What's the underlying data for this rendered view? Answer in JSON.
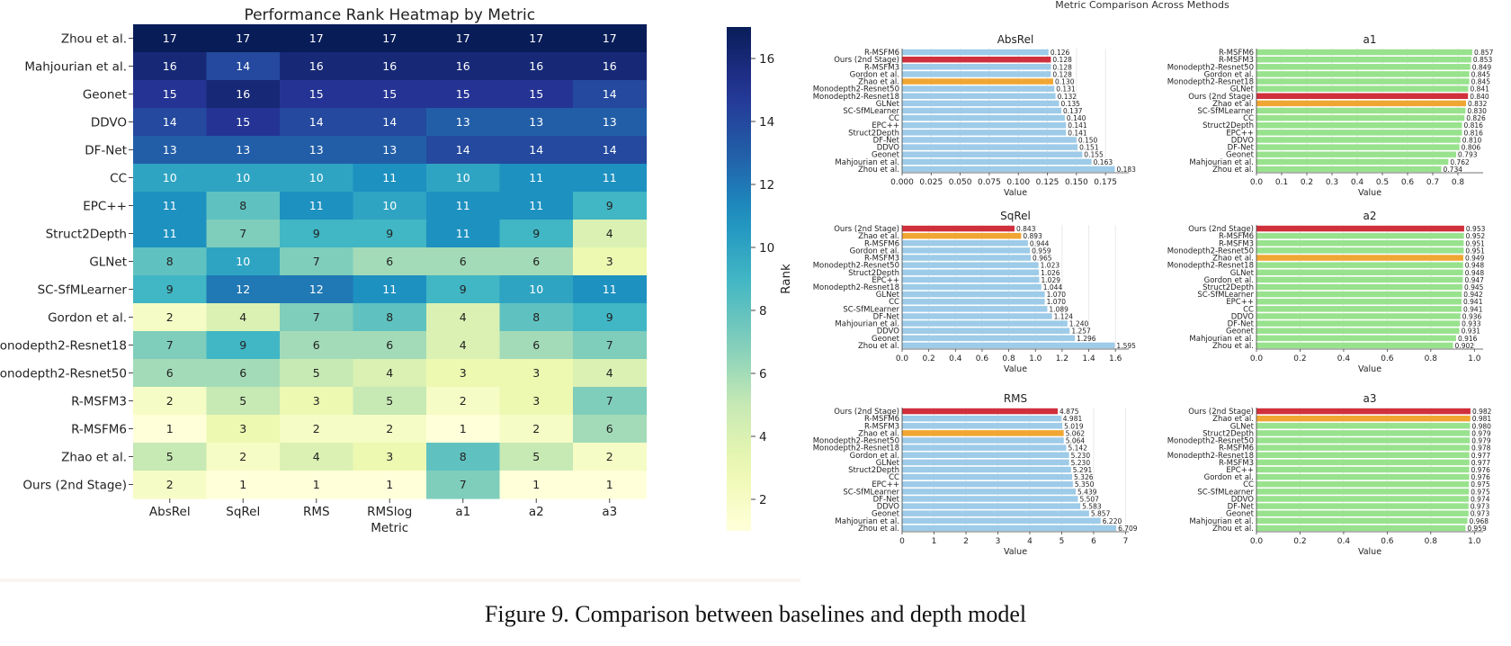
{
  "caption": "Figure 9. Comparison between baselines and depth model",
  "colors": {
    "bar_default": "#9dcbe8",
    "bar_green": "#98e28d",
    "bar_ours": "#d0303c",
    "bar_zhao": "#f0a632",
    "heat_low": "#ffffd9",
    "heat_high": "#081d58"
  },
  "chart_data": [
    {
      "type": "heatmap",
      "title": "Performance Rank Heatmap by Metric",
      "xlabel": "Metric",
      "colorbar_label": "Rank",
      "colorbar_ticks": [
        2,
        4,
        6,
        8,
        10,
        12,
        14,
        16
      ],
      "value_range": [
        1,
        17
      ],
      "colormap": "YlGnBu",
      "columns": [
        "AbsRel",
        "SqRel",
        "RMS",
        "RMSlog",
        "a1",
        "a2",
        "a3"
      ],
      "rows": [
        "Zhou et al.",
        "Mahjourian et al.",
        "Geonet",
        "DDVO",
        "DF-Net",
        "CC",
        "EPC++",
        "Struct2Depth",
        "GLNet",
        "SC-SfMLearner",
        "Gordon et al.",
        "Monodepth2-Resnet18",
        "Monodepth2-Resnet50",
        "R-MSFM3",
        "R-MSFM6",
        "Zhao et al.",
        "Ours (2nd Stage)"
      ],
      "values": [
        [
          17,
          17,
          17,
          17,
          17,
          17,
          17
        ],
        [
          16,
          14,
          16,
          16,
          16,
          16,
          16
        ],
        [
          15,
          16,
          15,
          15,
          15,
          15,
          14
        ],
        [
          14,
          15,
          14,
          14,
          13,
          13,
          13
        ],
        [
          13,
          13,
          13,
          13,
          14,
          14,
          14
        ],
        [
          10,
          10,
          10,
          11,
          10,
          11,
          11
        ],
        [
          11,
          8,
          11,
          10,
          11,
          11,
          9
        ],
        [
          11,
          7,
          9,
          9,
          11,
          9,
          4
        ],
        [
          8,
          10,
          7,
          6,
          6,
          6,
          3
        ],
        [
          9,
          12,
          12,
          11,
          9,
          10,
          11
        ],
        [
          2,
          4,
          7,
          8,
          4,
          8,
          9
        ],
        [
          7,
          9,
          6,
          6,
          4,
          6,
          7
        ],
        [
          6,
          6,
          5,
          4,
          3,
          3,
          4
        ],
        [
          2,
          5,
          3,
          5,
          2,
          3,
          7
        ],
        [
          1,
          3,
          2,
          2,
          1,
          2,
          6
        ],
        [
          5,
          2,
          4,
          3,
          8,
          5,
          2
        ],
        [
          2,
          1,
          1,
          1,
          7,
          1,
          1
        ]
      ]
    },
    {
      "type": "bar",
      "orientation": "horizontal",
      "suptitle": "Metric Comparison Across Methods",
      "title": "AbsRel",
      "xlabel": "Value",
      "xlim": [
        0,
        0.195
      ],
      "xticks": [
        "0.000",
        "0.025",
        "0.050",
        "0.075",
        "0.100",
        "0.125",
        "0.150",
        "0.175"
      ],
      "tick_step": 0.025,
      "palette": "blue",
      "categories": [
        "R-MSFM6",
        "Ours (2nd Stage)",
        "R-MSFM3",
        "Gordon et al.",
        "Zhao et al.",
        "Monodepth2-Resnet50",
        "Monodepth2-Resnet18",
        "GLNet",
        "SC-SfMLearner",
        "CC",
        "EPC++",
        "Struct2Depth",
        "DF-Net",
        "DDVO",
        "Geonet",
        "Mahjourian et al.",
        "Zhou et al."
      ],
      "values": [
        0.126,
        0.128,
        0.128,
        0.128,
        0.13,
        0.131,
        0.132,
        0.135,
        0.137,
        0.14,
        0.141,
        0.141,
        0.15,
        0.151,
        0.155,
        0.163,
        0.183
      ],
      "labels": [
        "0.126",
        "0.128",
        "0.128",
        "0.128",
        "0.130",
        "0.131",
        "0.132",
        "0.135",
        "0.137",
        "0.140",
        "0.141",
        "0.141",
        "0.150",
        "0.151",
        "0.155",
        "0.163",
        "0.183"
      ]
    },
    {
      "type": "bar",
      "orientation": "horizontal",
      "title": "a1",
      "xlabel": "Value",
      "xlim": [
        0,
        0.9
      ],
      "xticks": [
        "0.0",
        "0.1",
        "0.2",
        "0.3",
        "0.4",
        "0.5",
        "0.6",
        "0.7",
        "0.8"
      ],
      "tick_step": 0.1,
      "palette": "green",
      "categories": [
        "R-MSFM6",
        "R-MSFM3",
        "Monodepth2-Resnet50",
        "Gordon et al.",
        "Monodepth2-Resnet18",
        "GLNet",
        "Ours (2nd Stage)",
        "Zhao et al.",
        "SC-SfMLearner",
        "CC",
        "Struct2Depth",
        "EPC++",
        "DDVO",
        "DF-Net",
        "Geonet",
        "Mahjourian et al.",
        "Zhou et al."
      ],
      "values": [
        0.857,
        0.853,
        0.849,
        0.845,
        0.845,
        0.841,
        0.84,
        0.832,
        0.83,
        0.826,
        0.816,
        0.816,
        0.81,
        0.806,
        0.793,
        0.762,
        0.734
      ],
      "labels": [
        "0.857",
        "0.853",
        "0.849",
        "0.845",
        "0.845",
        "0.841",
        "0.840",
        "0.832",
        "0.830",
        "0.826",
        "0.816",
        "0.816",
        "0.810",
        "0.806",
        "0.793",
        "0.762",
        "0.734"
      ]
    },
    {
      "type": "bar",
      "orientation": "horizontal",
      "title": "SqRel",
      "xlabel": "Value",
      "xlim": [
        0,
        1.7
      ],
      "xticks": [
        "0.0",
        "0.2",
        "0.4",
        "0.6",
        "0.8",
        "1.0",
        "1.2",
        "1.4",
        "1.6"
      ],
      "tick_step": 0.2,
      "palette": "blue",
      "categories": [
        "Ours (2nd Stage)",
        "Zhao et al.",
        "R-MSFM6",
        "Gordon et al.",
        "R-MSFM3",
        "Monodepth2-Resnet50",
        "Struct2Depth",
        "EPC++",
        "Monodepth2-Resnet18",
        "GLNet",
        "CC",
        "SC-SfMLearner",
        "DF-Net",
        "Mahjourian et al.",
        "DDVO",
        "Geonet",
        "Zhou et al."
      ],
      "values": [
        0.843,
        0.893,
        0.944,
        0.959,
        0.965,
        1.023,
        1.026,
        1.029,
        1.044,
        1.07,
        1.07,
        1.089,
        1.124,
        1.24,
        1.257,
        1.296,
        1.595
      ],
      "labels": [
        "0.843",
        "0.893",
        "0.944",
        "0.959",
        "0.965",
        "1.023",
        "1.026",
        "1.029",
        "1.044",
        "1.070",
        "1.070",
        "1.089",
        "1.124",
        "1.240",
        "1.257",
        "1.296",
        "1.595"
      ]
    },
    {
      "type": "bar",
      "orientation": "horizontal",
      "title": "a2",
      "xlabel": "Value",
      "xlim": [
        0,
        1.04
      ],
      "xticks": [
        "0.0",
        "0.2",
        "0.4",
        "0.6",
        "0.8",
        "1.0"
      ],
      "tick_step": 0.2,
      "palette": "green",
      "categories": [
        "Ours (2nd Stage)",
        "R-MSFM6",
        "R-MSFM3",
        "Monodepth2-Resnet50",
        "Zhao et al.",
        "Monodepth2-Resnet18",
        "GLNet",
        "Gordon et al.",
        "Struct2Depth",
        "SC-SfMLearner",
        "EPC++",
        "CC",
        "DDVO",
        "DF-Net",
        "Geonet",
        "Mahjourian et al.",
        "Zhou et al."
      ],
      "values": [
        0.953,
        0.952,
        0.951,
        0.951,
        0.949,
        0.948,
        0.948,
        0.947,
        0.945,
        0.942,
        0.941,
        0.941,
        0.936,
        0.933,
        0.931,
        0.916,
        0.902
      ],
      "labels": [
        "0.953",
        "0.952",
        "0.951",
        "0.951",
        "0.949",
        "0.948",
        "0.948",
        "0.947",
        "0.945",
        "0.942",
        "0.941",
        "0.941",
        "0.936",
        "0.933",
        "0.931",
        "0.916",
        "0.902"
      ]
    },
    {
      "type": "bar",
      "orientation": "horizontal",
      "title": "RMS",
      "xlabel": "Value",
      "xlim": [
        0,
        7.1
      ],
      "xticks": [
        "0",
        "1",
        "2",
        "3",
        "4",
        "5",
        "6",
        "7"
      ],
      "tick_step": 1,
      "palette": "blue",
      "categories": [
        "Ours (2nd Stage)",
        "R-MSFM6",
        "R-MSFM3",
        "Zhao et al.",
        "Monodepth2-Resnet50",
        "Monodepth2-Resnet18",
        "Gordon et al.",
        "GLNet",
        "Struct2Depth",
        "CC",
        "EPC++",
        "SC-SfMLearner",
        "DF-Net",
        "DDVO",
        "Geonet",
        "Mahjourian et al.",
        "Zhou et al."
      ],
      "values": [
        4.875,
        4.981,
        5.019,
        5.062,
        5.064,
        5.142,
        5.23,
        5.23,
        5.291,
        5.326,
        5.35,
        5.439,
        5.507,
        5.583,
        5.857,
        6.22,
        6.709
      ],
      "labels": [
        "4.875",
        "4.981",
        "5.019",
        "5.062",
        "5.064",
        "5.142",
        "5.230",
        "5.230",
        "5.291",
        "5.326",
        "5.350",
        "5.439",
        "5.507",
        "5.583",
        "5.857",
        "6.220",
        "6.709"
      ]
    },
    {
      "type": "bar",
      "orientation": "horizontal",
      "title": "a3",
      "xlabel": "Value",
      "xlim": [
        0,
        1.04
      ],
      "xticks": [
        "0.0",
        "0.2",
        "0.4",
        "0.6",
        "0.8",
        "1.0"
      ],
      "tick_step": 0.2,
      "palette": "green",
      "categories": [
        "Ours (2nd Stage)",
        "Zhao et al.",
        "GLNet",
        "Struct2Depth",
        "Monodepth2-Resnet50",
        "R-MSFM6",
        "Monodepth2-Resnet18",
        "R-MSFM3",
        "EPC++",
        "Gordon et al.",
        "CC",
        "SC-SfMLearner",
        "DDVO",
        "DF-Net",
        "Geonet",
        "Mahjourian et al.",
        "Zhou et al."
      ],
      "values": [
        0.982,
        0.981,
        0.98,
        0.979,
        0.979,
        0.978,
        0.977,
        0.977,
        0.976,
        0.976,
        0.975,
        0.975,
        0.974,
        0.973,
        0.973,
        0.968,
        0.959
      ],
      "labels": [
        "0.982",
        "0.981",
        "0.980",
        "0.979",
        "0.979",
        "0.978",
        "0.977",
        "0.977",
        "0.976",
        "0.976",
        "0.975",
        "0.975",
        "0.974",
        "0.973",
        "0.973",
        "0.968",
        "0.959"
      ]
    }
  ]
}
